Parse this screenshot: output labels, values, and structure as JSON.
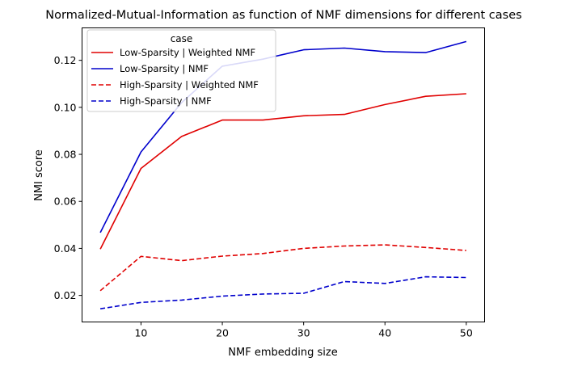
{
  "chart_data": {
    "type": "line",
    "title": "Normalized-Mutual-Information as function of NMF dimensions for different cases",
    "xlabel": "NMF embedding size",
    "ylabel": "NMI score",
    "x": [
      5,
      10,
      15,
      20,
      25,
      30,
      35,
      40,
      45,
      50
    ],
    "xlim": [
      2.75,
      52.25
    ],
    "ylim": [
      0.0087,
      0.1338
    ],
    "xticks": [
      10,
      20,
      30,
      40,
      50
    ],
    "yticks": [
      0.02,
      0.04,
      0.06,
      0.08,
      0.1,
      0.12
    ],
    "xtick_labels": [
      "10",
      "20",
      "30",
      "40",
      "50"
    ],
    "ytick_labels": [
      "0.02",
      "0.04",
      "0.06",
      "0.08",
      "0.10",
      "0.12"
    ],
    "grid": false,
    "legend": {
      "title": "case",
      "placement": "upper-left"
    },
    "series": [
      {
        "name": "Low-Sparsity | Weighted NMF",
        "color": "#e00000",
        "dash": "solid",
        "values": [
          0.0397,
          0.074,
          0.0876,
          0.0946,
          0.0946,
          0.0964,
          0.097,
          0.1012,
          0.1047,
          0.1058
        ]
      },
      {
        "name": "Low-Sparsity | NMF",
        "color": "#0000cc",
        "dash": "solid",
        "values": [
          0.0467,
          0.081,
          0.102,
          0.1175,
          0.1205,
          0.1245,
          0.1252,
          0.1237,
          0.1233,
          0.128
        ]
      },
      {
        "name": "High-Sparsity | Weighted NMF",
        "color": "#e00000",
        "dash": "dashed",
        "values": [
          0.022,
          0.0366,
          0.0348,
          0.0367,
          0.0378,
          0.04,
          0.041,
          0.0415,
          0.0404,
          0.0391
        ]
      },
      {
        "name": "High-Sparsity | NMF",
        "color": "#0000cc",
        "dash": "dashed",
        "values": [
          0.0143,
          0.017,
          0.018,
          0.0197,
          0.0206,
          0.0209,
          0.0259,
          0.0251,
          0.0279,
          0.0276
        ]
      }
    ]
  }
}
